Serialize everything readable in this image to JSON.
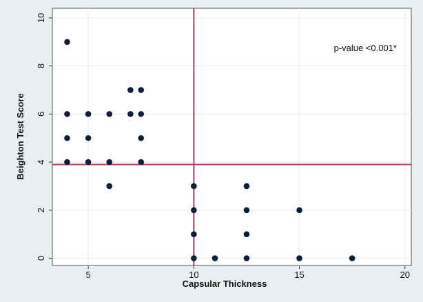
{
  "chart_data": {
    "type": "scatter",
    "title": "",
    "xlabel": "Capsular Thickness",
    "ylabel": "Beighton Test Score",
    "xlim": [
      3.3,
      20.3
    ],
    "ylim": [
      -0.3,
      10.4
    ],
    "xticks": [
      5,
      10,
      15,
      20
    ],
    "yticks": [
      0,
      2,
      4,
      6,
      8,
      10
    ],
    "grid": true,
    "annotation": "p-value <0.001*",
    "reference_lines": {
      "vertical_x": 10,
      "horizontal_y": 3.9
    },
    "points": [
      {
        "x": 4,
        "y": 9
      },
      {
        "x": 4,
        "y": 6
      },
      {
        "x": 4,
        "y": 5
      },
      {
        "x": 4,
        "y": 4
      },
      {
        "x": 5,
        "y": 6
      },
      {
        "x": 5,
        "y": 5
      },
      {
        "x": 5,
        "y": 4
      },
      {
        "x": 6,
        "y": 6
      },
      {
        "x": 6,
        "y": 4
      },
      {
        "x": 6,
        "y": 3
      },
      {
        "x": 7,
        "y": 7
      },
      {
        "x": 7,
        "y": 6
      },
      {
        "x": 7.5,
        "y": 7
      },
      {
        "x": 7.5,
        "y": 6
      },
      {
        "x": 7.5,
        "y": 5
      },
      {
        "x": 7.5,
        "y": 4
      },
      {
        "x": 10,
        "y": 3
      },
      {
        "x": 10,
        "y": 2
      },
      {
        "x": 10,
        "y": 1
      },
      {
        "x": 10,
        "y": 0
      },
      {
        "x": 11,
        "y": 0
      },
      {
        "x": 12.5,
        "y": 3
      },
      {
        "x": 12.5,
        "y": 2
      },
      {
        "x": 12.5,
        "y": 1
      },
      {
        "x": 12.5,
        "y": 0
      },
      {
        "x": 15,
        "y": 2
      },
      {
        "x": 15,
        "y": 0
      },
      {
        "x": 17.5,
        "y": 0
      }
    ],
    "colors": {
      "points": "#0d1f35",
      "reference_lines": "#c8325a",
      "grid": "#e8ecef",
      "plot_bg": "#ffffff",
      "outer_bg": "#e9eef1"
    }
  }
}
